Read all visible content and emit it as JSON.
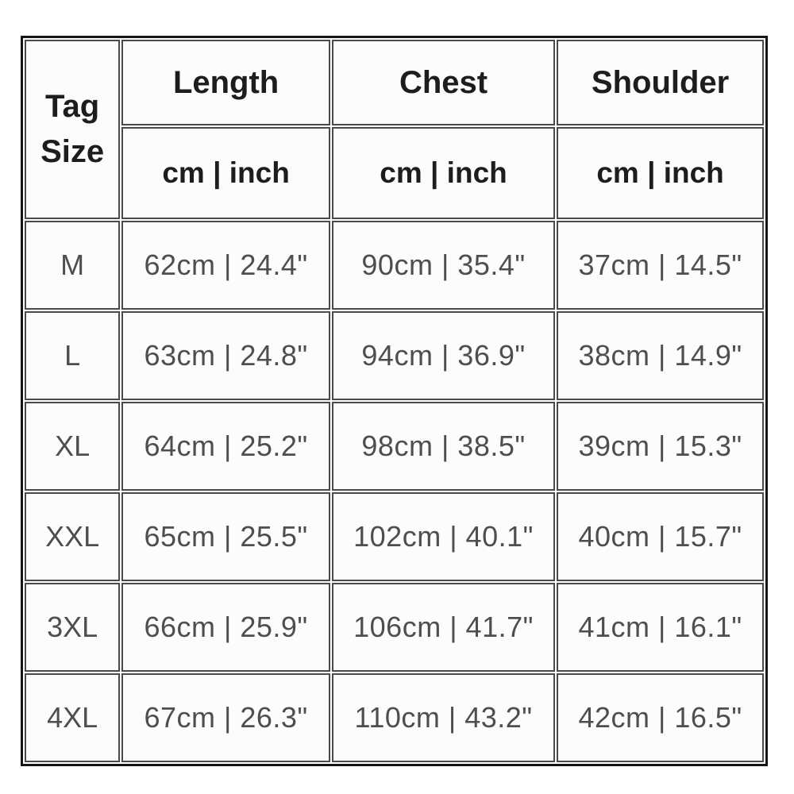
{
  "chart_data": {
    "type": "table",
    "corner": {
      "line1": "Tag",
      "line2": "Size"
    },
    "columns": [
      {
        "label": "Length",
        "unit": "cm | inch"
      },
      {
        "label": "Chest",
        "unit": "cm | inch"
      },
      {
        "label": "Shoulder",
        "unit": "cm | inch"
      }
    ],
    "rows": [
      {
        "size": "M",
        "length": "62cm | 24.4\"",
        "chest": "90cm | 35.4\"",
        "shoulder": "37cm | 14.5\"",
        "length_cm": 62,
        "length_inch": 24.4,
        "chest_cm": 90,
        "chest_inch": 35.4,
        "shoulder_cm": 37,
        "shoulder_inch": 14.5
      },
      {
        "size": "L",
        "length": "63cm | 24.8\"",
        "chest": "94cm | 36.9\"",
        "shoulder": "38cm | 14.9\"",
        "length_cm": 63,
        "length_inch": 24.8,
        "chest_cm": 94,
        "chest_inch": 36.9,
        "shoulder_cm": 38,
        "shoulder_inch": 14.9
      },
      {
        "size": "XL",
        "length": "64cm | 25.2\"",
        "chest": "98cm | 38.5\"",
        "shoulder": "39cm | 15.3\"",
        "length_cm": 64,
        "length_inch": 25.2,
        "chest_cm": 98,
        "chest_inch": 38.5,
        "shoulder_cm": 39,
        "shoulder_inch": 15.3
      },
      {
        "size": "XXL",
        "length": "65cm | 25.5\"",
        "chest": "102cm | 40.1\"",
        "shoulder": "40cm | 15.7\"",
        "length_cm": 65,
        "length_inch": 25.5,
        "chest_cm": 102,
        "chest_inch": 40.1,
        "shoulder_cm": 40,
        "shoulder_inch": 15.7
      },
      {
        "size": "3XL",
        "length": "66cm | 25.9\"",
        "chest": "106cm | 41.7\"",
        "shoulder": "41cm | 16.1\"",
        "length_cm": 66,
        "length_inch": 25.9,
        "chest_cm": 106,
        "chest_inch": 41.7,
        "shoulder_cm": 41,
        "shoulder_inch": 16.1
      },
      {
        "size": "4XL",
        "length": "67cm | 26.3\"",
        "chest": "110cm | 43.2\"",
        "shoulder": "42cm | 16.5\"",
        "length_cm": 67,
        "length_inch": 26.3,
        "chest_cm": 110,
        "chest_inch": 43.2,
        "shoulder_cm": 42,
        "shoulder_inch": 16.5
      }
    ],
    "layout_hints": {
      "grid": "on",
      "header_rows": 2,
      "corner_cell_rowspan": 2
    },
    "colors": {
      "outer_border": "#161616",
      "inner_border": "#4a4a4a",
      "cell_background": "#fcfcfc",
      "page_background": "#ffffff",
      "header_text": "#1d1d1d",
      "data_text": "#4e4e4e"
    }
  }
}
